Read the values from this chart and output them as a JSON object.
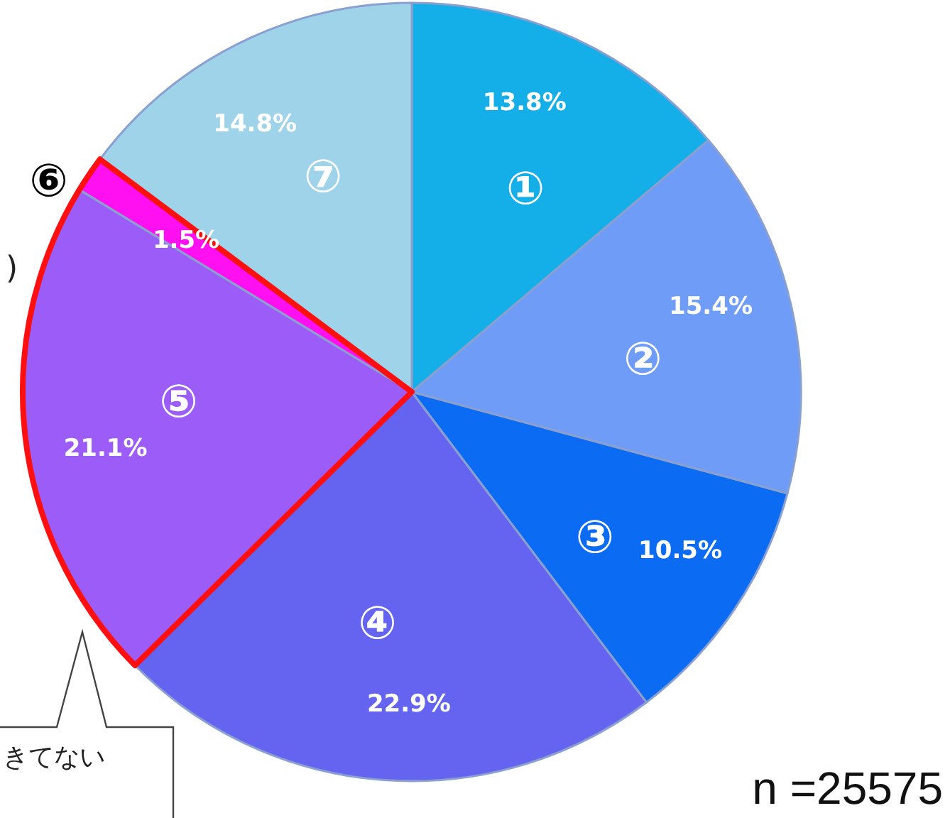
{
  "chart_data": {
    "type": "pie",
    "categories": [
      "①",
      "②",
      "③",
      "④",
      "⑤",
      "⑥",
      "⑦"
    ],
    "values": [
      13.8,
      15.4,
      10.5,
      22.9,
      21.1,
      1.5,
      14.8
    ],
    "colors": [
      "#14aee8",
      "#6e9cf6",
      "#0b6cf3",
      "#6464f0",
      "#9c5cf8",
      "#ff10f0",
      "#9fd3ea"
    ],
    "value_labels": [
      "13.8%",
      "15.4%",
      "10.5%",
      "22.9%",
      "21.1%",
      "1.5%",
      "14.8%"
    ],
    "annotations": [
      ")",
      "きてない",
      "n =25575"
    ]
  }
}
